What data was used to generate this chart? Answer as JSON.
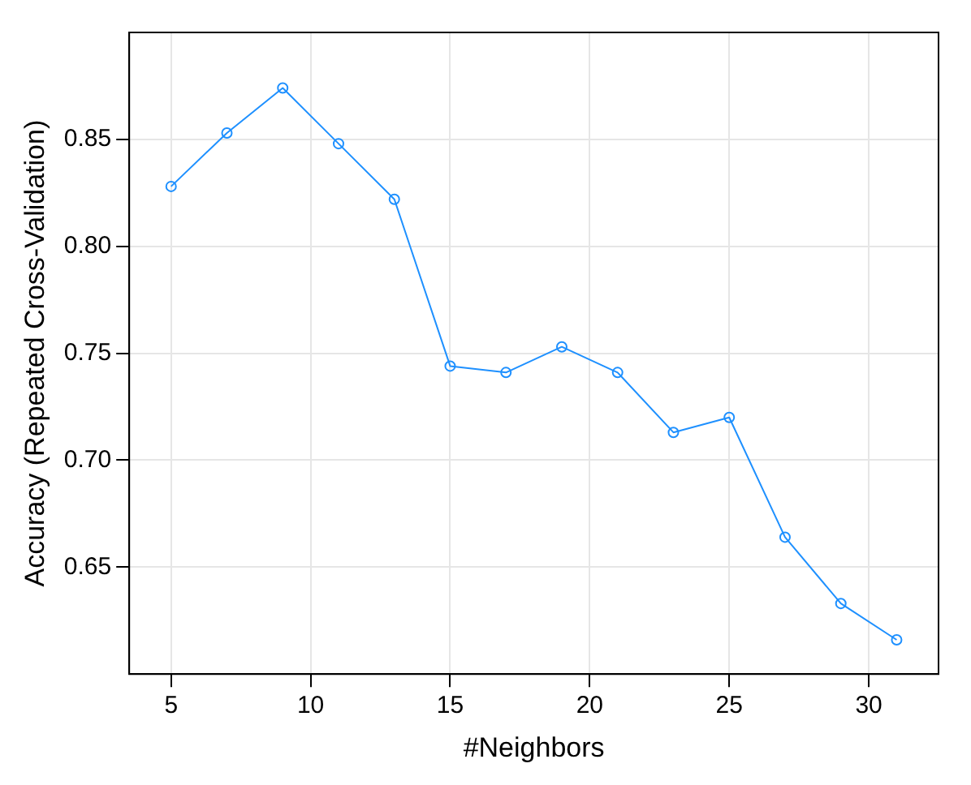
{
  "chart_data": {
    "type": "line",
    "xlabel": "#Neighbors",
    "ylabel": "Accuracy (Repeated Cross-Validation)",
    "x": [
      5,
      7,
      9,
      11,
      13,
      15,
      17,
      19,
      21,
      23,
      25,
      27,
      29,
      31
    ],
    "series": [
      {
        "color": "#1e90ff",
        "values": [
          0.828,
          0.853,
          0.874,
          0.848,
          0.822,
          0.744,
          0.741,
          0.753,
          0.741,
          0.713,
          0.72,
          0.664,
          0.633,
          0.616
        ]
      }
    ],
    "xlim": [
      3.5,
      32.5
    ],
    "xticks": [
      5,
      10,
      15,
      20,
      25,
      30
    ],
    "ylim": [
      0.6,
      0.9
    ],
    "yticks": [
      0.65,
      {
        "value": 0.7,
        "label": "0.70"
      },
      0.75,
      {
        "value": 0.8,
        "label": "0.80"
      },
      0.85
    ],
    "grid": true,
    "legend": false,
    "marker": "circle",
    "line_style": "solid"
  }
}
